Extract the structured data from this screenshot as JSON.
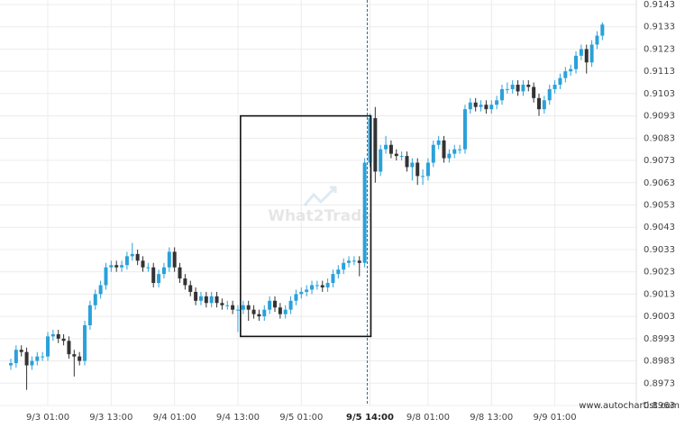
{
  "chart_data": {
    "type": "candlestick",
    "categories": [
      null,
      null,
      null,
      null,
      null,
      null,
      null,
      "9/3 01:00",
      null,
      null,
      null,
      null,
      null,
      null,
      null,
      null,
      null,
      null,
      null,
      "9/3 13:00",
      null,
      null,
      null,
      null,
      null,
      null,
      null,
      null,
      null,
      null,
      null,
      "9/4 01:00",
      null,
      null,
      null,
      null,
      null,
      null,
      null,
      null,
      null,
      null,
      null,
      "9/4 13:00",
      null,
      null,
      null,
      null,
      null,
      null,
      null,
      null,
      null,
      null,
      null,
      "9/5 01:00",
      null,
      null,
      null,
      null,
      null,
      null,
      null,
      null,
      null,
      null,
      null,
      null,
      "9/5 14:00",
      null,
      null,
      null,
      null,
      null,
      null,
      null,
      null,
      null,
      null,
      "9/8 01:00",
      null,
      null,
      null,
      null,
      null,
      null,
      null,
      null,
      null,
      null,
      null,
      "9/8 13:00",
      null,
      null,
      null,
      null,
      null,
      null,
      null,
      null,
      null,
      null,
      null,
      "9/9 01:00",
      null,
      null,
      null,
      null,
      null,
      null,
      null,
      null,
      null
    ],
    "open": [
      0.8981,
      0.8982,
      0.8988,
      0.8987,
      0.8981,
      0.8983,
      0.8985,
      0.8985,
      0.8994,
      0.8995,
      0.8993,
      0.8992,
      0.8986,
      0.8985,
      0.8983,
      0.8999,
      0.9008,
      0.9013,
      0.9017,
      0.9025,
      0.9026,
      0.9025,
      0.9026,
      0.903,
      0.9031,
      0.9028,
      0.9025,
      0.9025,
      0.9018,
      0.9022,
      0.9025,
      0.9032,
      0.9025,
      0.902,
      0.9017,
      0.9014,
      0.901,
      0.9012,
      0.9009,
      0.9012,
      0.9009,
      0.9008,
      0.9008,
      0.9006,
      0.9006,
      0.9008,
      0.9006,
      0.9004,
      0.9003,
      0.9006,
      0.901,
      0.9007,
      0.9004,
      0.9006,
      0.901,
      0.9013,
      0.9014,
      0.9015,
      0.9017,
      0.9017,
      0.9016,
      0.9018,
      0.9022,
      0.9024,
      0.9027,
      0.9028,
      0.9028,
      0.9027,
      0.9072,
      0.9092,
      0.9068,
      0.9078,
      0.908,
      0.9076,
      0.9075,
      0.9075,
      0.907,
      0.9072,
      0.9066,
      0.9066,
      0.9072,
      0.908,
      0.9082,
      0.9074,
      0.9076,
      0.9078,
      0.9078,
      0.9096,
      0.9099,
      0.9097,
      0.9098,
      0.9096,
      0.9098,
      0.91,
      0.9105,
      0.9105,
      0.9107,
      0.9104,
      0.9107,
      0.9106,
      0.9101,
      0.9096,
      0.91,
      0.9105,
      0.9107,
      0.911,
      0.9113,
      0.9114,
      0.912,
      0.9123,
      0.9117,
      0.9125,
      0.9129
    ],
    "high": [
      0.8984,
      0.899,
      0.899,
      0.8989,
      0.8985,
      0.8987,
      0.8987,
      0.8996,
      0.8997,
      0.8997,
      0.8995,
      0.8994,
      0.8988,
      0.8987,
      0.9001,
      0.901,
      0.9015,
      0.9019,
      0.9027,
      0.9028,
      0.9028,
      0.9028,
      0.9032,
      0.9036,
      0.9033,
      0.903,
      0.9027,
      0.9027,
      0.9024,
      0.9027,
      0.9034,
      0.9034,
      0.9027,
      0.9022,
      0.9019,
      0.9016,
      0.9014,
      0.9014,
      0.9014,
      0.9014,
      0.9011,
      0.901,
      0.901,
      0.9008,
      0.901,
      0.901,
      0.9008,
      0.9006,
      0.9008,
      0.9012,
      0.9012,
      0.9009,
      0.9008,
      0.9012,
      0.9015,
      0.9016,
      0.9017,
      0.9019,
      0.9019,
      0.9019,
      0.902,
      0.9024,
      0.9026,
      0.9029,
      0.903,
      0.903,
      0.903,
      0.9074,
      0.9094,
      0.9097,
      0.908,
      0.9084,
      0.9082,
      0.9078,
      0.9077,
      0.9077,
      0.9074,
      0.9074,
      0.9069,
      0.9074,
      0.9082,
      0.9084,
      0.9084,
      0.9078,
      0.908,
      0.908,
      0.9098,
      0.9101,
      0.9101,
      0.91,
      0.91,
      0.91,
      0.9102,
      0.9107,
      0.9108,
      0.9109,
      0.9109,
      0.9109,
      0.9109,
      0.9108,
      0.9103,
      0.9102,
      0.9107,
      0.9109,
      0.9112,
      0.9115,
      0.9116,
      0.9122,
      0.9125,
      0.9125,
      0.9127,
      0.9131,
      0.9135
    ],
    "low": [
      0.8979,
      0.898,
      0.8985,
      0.897,
      0.8979,
      0.8981,
      0.8983,
      0.8983,
      0.8992,
      0.8991,
      0.899,
      0.8984,
      0.8976,
      0.8981,
      0.8981,
      0.8997,
      0.9006,
      0.9011,
      0.9015,
      0.9023,
      0.9023,
      0.9023,
      0.9024,
      0.9028,
      0.9026,
      0.9023,
      0.9023,
      0.9016,
      0.9016,
      0.902,
      0.9023,
      0.9023,
      0.9018,
      0.9015,
      0.9012,
      0.9008,
      0.9008,
      0.9007,
      0.9007,
      0.9007,
      0.9006,
      0.9006,
      0.9004,
      0.8996,
      0.9004,
      0.9001,
      0.9002,
      0.9001,
      0.9001,
      0.9004,
      0.9005,
      0.9002,
      0.9002,
      0.9004,
      0.9008,
      0.9011,
      0.9012,
      0.9013,
      0.9015,
      0.9014,
      0.9014,
      0.9016,
      0.902,
      0.9022,
      0.9025,
      0.9026,
      0.9021,
      0.9025,
      0.907,
      0.9063,
      0.9066,
      0.9076,
      0.9074,
      0.9073,
      0.9073,
      0.9068,
      0.9064,
      0.9062,
      0.9062,
      0.9064,
      0.907,
      0.9078,
      0.9072,
      0.9072,
      0.9074,
      0.9076,
      0.9076,
      0.9094,
      0.9095,
      0.9095,
      0.9094,
      0.9094,
      0.9096,
      0.9098,
      0.9103,
      0.9103,
      0.9102,
      0.9102,
      0.9104,
      0.9099,
      0.9093,
      0.9094,
      0.9098,
      0.9103,
      0.9105,
      0.9108,
      0.9111,
      0.9112,
      0.9118,
      0.9112,
      0.9115,
      0.9123,
      0.9127
    ],
    "close": [
      0.8982,
      0.8988,
      0.8987,
      0.8981,
      0.8983,
      0.8985,
      0.8985,
      0.8994,
      0.8995,
      0.8993,
      0.8992,
      0.8986,
      0.8985,
      0.8983,
      0.8999,
      0.9008,
      0.9013,
      0.9017,
      0.9025,
      0.9026,
      0.9025,
      0.9026,
      0.903,
      0.9031,
      0.9028,
      0.9025,
      0.9025,
      0.9018,
      0.9022,
      0.9025,
      0.9032,
      0.9025,
      0.902,
      0.9017,
      0.9014,
      0.901,
      0.9012,
      0.9009,
      0.9012,
      0.9009,
      0.9008,
      0.9008,
      0.9006,
      0.9006,
      0.9008,
      0.9006,
      0.9004,
      0.9003,
      0.9006,
      0.901,
      0.9007,
      0.9004,
      0.9006,
      0.901,
      0.9013,
      0.9014,
      0.9015,
      0.9017,
      0.9017,
      0.9016,
      0.9018,
      0.9022,
      0.9024,
      0.9027,
      0.9028,
      0.9028,
      0.9027,
      0.9072,
      0.9092,
      0.9068,
      0.9078,
      0.908,
      0.9076,
      0.9075,
      0.9075,
      0.907,
      0.9072,
      0.9066,
      0.9066,
      0.9072,
      0.908,
      0.9082,
      0.9074,
      0.9076,
      0.9078,
      0.9078,
      0.9096,
      0.9099,
      0.9097,
      0.9098,
      0.9096,
      0.9098,
      0.91,
      0.9105,
      0.9105,
      0.9107,
      0.9104,
      0.9107,
      0.9106,
      0.9101,
      0.9096,
      0.91,
      0.9105,
      0.9107,
      0.911,
      0.9113,
      0.9114,
      0.912,
      0.9123,
      0.9117,
      0.9125,
      0.9129,
      0.9134
    ],
    "up_color": "#2aa1da",
    "down_color": "#333333",
    "pattern": {
      "start": 44,
      "end": 68,
      "top": 0.9093,
      "bottom": 0.8994
    },
    "ylim": [
      0.8963,
      0.9143
    ],
    "yticks": [
      0.8963,
      0.8973,
      0.8983,
      0.8993,
      0.9003,
      0.9013,
      0.9023,
      0.9033,
      0.9043,
      0.9053,
      0.9063,
      0.9073,
      0.9083,
      0.9093,
      0.9103,
      0.9113,
      0.9123,
      0.9133,
      0.9143
    ],
    "grid": true,
    "watermark": "What2Trade",
    "source": "www.autochartist.com"
  }
}
